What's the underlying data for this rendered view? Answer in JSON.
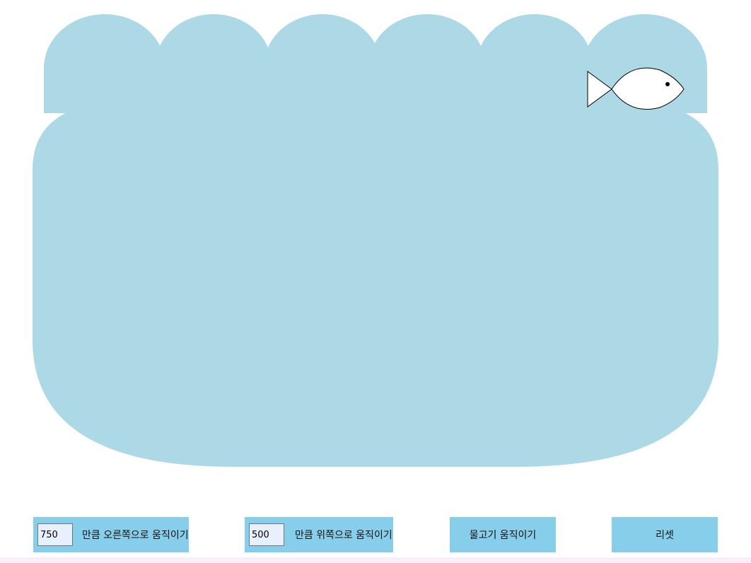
{
  "colors": {
    "water": "#add8e6",
    "control_bg": "#87ceeb",
    "input_bg": "#e8f0fe",
    "fish_fill": "#ffffff",
    "fish_stroke": "#000000"
  },
  "fish": {
    "icon": "fish-icon"
  },
  "controls": {
    "move_right": {
      "value": "750",
      "label": "만큼 오른쪽으로 움직이기"
    },
    "move_up": {
      "value": "500",
      "label": "만큼 위쪽으로 움직이기"
    },
    "move_fish_label": "물고기 움직이기",
    "reset_label": "리셋"
  }
}
